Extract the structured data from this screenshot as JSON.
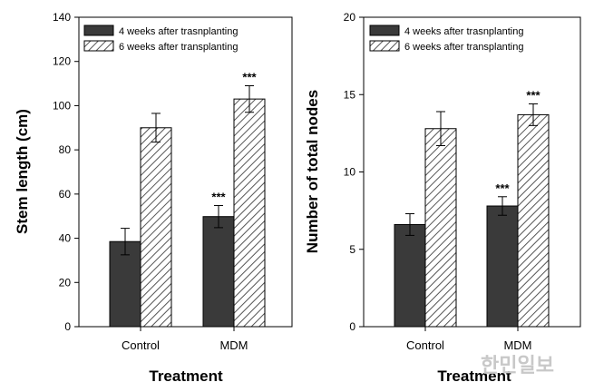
{
  "colors": {
    "solid_bar": "#3a3a3a",
    "hatch_stroke": "#555555",
    "hatch_bg": "#ffffff"
  },
  "watermark": "한민일보",
  "chart_data": [
    {
      "type": "bar",
      "categories": [
        "Control",
        "MDM"
      ],
      "series": [
        {
          "name": "4 weeks after trasnplanting",
          "style": "solid",
          "values": [
            38.5,
            49.8
          ],
          "errors": [
            6,
            5
          ],
          "sig": [
            "",
            "***"
          ]
        },
        {
          "name": "6 weeks after transplanting",
          "style": "hatched",
          "values": [
            90,
            103
          ],
          "errors": [
            6.5,
            6
          ],
          "sig": [
            "",
            "***"
          ]
        }
      ],
      "xlabel": "Treatment",
      "ylabel": "Stem length (cm)",
      "ylim": [
        0,
        140
      ],
      "yticks": [
        0,
        20,
        40,
        60,
        80,
        100,
        120,
        140
      ],
      "legend": "top-left",
      "grid": false
    },
    {
      "type": "bar",
      "categories": [
        "Control",
        "MDM"
      ],
      "series": [
        {
          "name": "4 weeks after trasnplanting",
          "style": "solid",
          "values": [
            6.6,
            7.8
          ],
          "errors": [
            0.7,
            0.6
          ],
          "sig": [
            "",
            "***"
          ]
        },
        {
          "name": "6 weeks after transplanting",
          "style": "hatched",
          "values": [
            12.8,
            13.7
          ],
          "errors": [
            1.1,
            0.7
          ],
          "sig": [
            "",
            "***"
          ]
        }
      ],
      "xlabel": "Treatment",
      "ylabel": "Number of total nodes",
      "ylim": [
        0,
        20
      ],
      "yticks": [
        0,
        5,
        10,
        15,
        20
      ],
      "legend": "top-left",
      "grid": false
    }
  ]
}
